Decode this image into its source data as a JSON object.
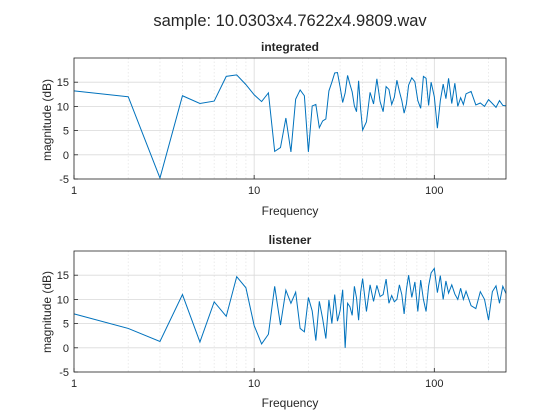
{
  "suptitle": "sample: 10.0303x4.7622x4.9809.wav",
  "chart_data": [
    {
      "type": "line",
      "title": "integrated",
      "xlabel": "Frequency",
      "ylabel": "magnitude (dB)",
      "xscale": "log",
      "xlim": [
        1,
        250
      ],
      "ylim": [
        -5,
        20
      ],
      "xticks": [
        1,
        10,
        100
      ],
      "xticklabels": [
        "1",
        "10",
        "100"
      ],
      "yticks": [
        -5,
        0,
        5,
        10,
        15
      ],
      "yticklabels": [
        "-5",
        "0",
        "5",
        "10",
        "15"
      ],
      "grid": true,
      "color": "#0072bd",
      "series": [
        {
          "x": [
            1,
            2,
            3,
            4,
            5,
            6,
            7,
            8,
            9,
            10,
            11,
            12,
            13,
            14,
            15,
            16,
            17,
            18,
            19,
            20,
            21,
            22,
            23,
            24,
            25,
            26,
            27,
            28,
            29,
            30,
            31,
            32,
            33,
            34,
            35,
            36,
            37,
            38,
            39,
            40,
            42,
            44,
            46,
            48,
            50,
            52,
            54,
            56,
            58,
            60,
            62,
            64,
            66,
            68,
            70,
            72,
            75,
            78,
            81,
            84,
            87,
            90,
            93,
            96,
            100,
            104,
            108,
            112,
            116,
            120,
            125,
            130,
            135,
            140,
            145,
            150,
            160,
            170,
            180,
            190,
            200,
            210,
            220,
            230,
            240,
            250
          ],
          "values": [
            13.2,
            12.0,
            -4.8,
            12.2,
            10.6,
            11.1,
            16.2,
            16.5,
            14.5,
            12.4,
            11.0,
            12.8,
            0.7,
            1.5,
            7.6,
            0.6,
            11.5,
            13.4,
            12.2,
            0.6,
            10.1,
            10.4,
            5.6,
            7.0,
            7.4,
            13.2,
            15.0,
            16.9,
            17.0,
            14.0,
            10.8,
            12.8,
            16.4,
            14.6,
            13.0,
            10.1,
            8.9,
            15.3,
            9.5,
            5.1,
            6.8,
            12.9,
            10.5,
            15.7,
            11.0,
            8.9,
            14.1,
            13.5,
            10.4,
            11.9,
            15.4,
            13.1,
            11.2,
            8.6,
            10.5,
            14.4,
            15.9,
            15.1,
            11.2,
            9.6,
            16.2,
            15.8,
            10.2,
            15.0,
            12.0,
            5.5,
            11.2,
            14.6,
            11.6,
            15.8,
            10.6,
            14.8,
            10.0,
            11.8,
            10.4,
            12.6,
            13.1,
            10.3,
            10.7,
            10.0,
            11.4,
            10.6,
            9.8,
            11.2,
            10.2,
            10.1
          ]
        }
      ]
    },
    {
      "type": "line",
      "title": "listener",
      "xlabel": "Frequency",
      "ylabel": "magnitude (dB)",
      "xscale": "log",
      "xlim": [
        1,
        250
      ],
      "ylim": [
        -5,
        20
      ],
      "xticks": [
        1,
        10,
        100
      ],
      "xticklabels": [
        "1",
        "10",
        "100"
      ],
      "yticks": [
        -5,
        0,
        5,
        10,
        15
      ],
      "yticklabels": [
        "-5",
        "0",
        "5",
        "10",
        "15"
      ],
      "grid": true,
      "color": "#0072bd",
      "series": [
        {
          "x": [
            1,
            2,
            3,
            4,
            5,
            6,
            7,
            8,
            9,
            10,
            11,
            12,
            13,
            14,
            15,
            16,
            17,
            18,
            19,
            20,
            21,
            22,
            23,
            24,
            25,
            26,
            27,
            28,
            29,
            30,
            31,
            32,
            33,
            34,
            35,
            36,
            37,
            38,
            39,
            40,
            42,
            44,
            46,
            48,
            50,
            52,
            54,
            56,
            58,
            60,
            62,
            64,
            66,
            68,
            70,
            72,
            75,
            78,
            81,
            84,
            87,
            90,
            93,
            96,
            100,
            104,
            108,
            112,
            116,
            120,
            125,
            130,
            135,
            140,
            145,
            150,
            160,
            170,
            180,
            190,
            200,
            210,
            220,
            230,
            240,
            250
          ],
          "values": [
            7.0,
            4.0,
            1.3,
            11.0,
            1.2,
            9.5,
            6.5,
            14.7,
            12.4,
            4.6,
            0.8,
            2.8,
            12.7,
            4.7,
            11.9,
            9.2,
            11.5,
            4.0,
            3.3,
            10.4,
            7.6,
            1.5,
            9.6,
            6.0,
            1.9,
            9.9,
            5.0,
            11.0,
            5.5,
            7.7,
            12.0,
            0.0,
            9.2,
            8.5,
            6.7,
            12.7,
            10.3,
            5.7,
            11.5,
            14.3,
            7.5,
            13.0,
            9.6,
            12.9,
            10.6,
            11.0,
            14.2,
            9.2,
            10.8,
            9.5,
            10.0,
            13.0,
            11.0,
            7.0,
            12.0,
            15.0,
            10.4,
            13.6,
            7.5,
            14.0,
            10.0,
            7.5,
            12.8,
            15.5,
            16.4,
            11.4,
            14.9,
            10.0,
            13.8,
            11.3,
            13.0,
            11.1,
            10.0,
            12.3,
            10.0,
            11.7,
            8.7,
            8.1,
            11.6,
            10.0,
            5.7,
            11.6,
            12.8,
            9.2,
            12.7,
            11.2
          ]
        }
      ]
    }
  ]
}
